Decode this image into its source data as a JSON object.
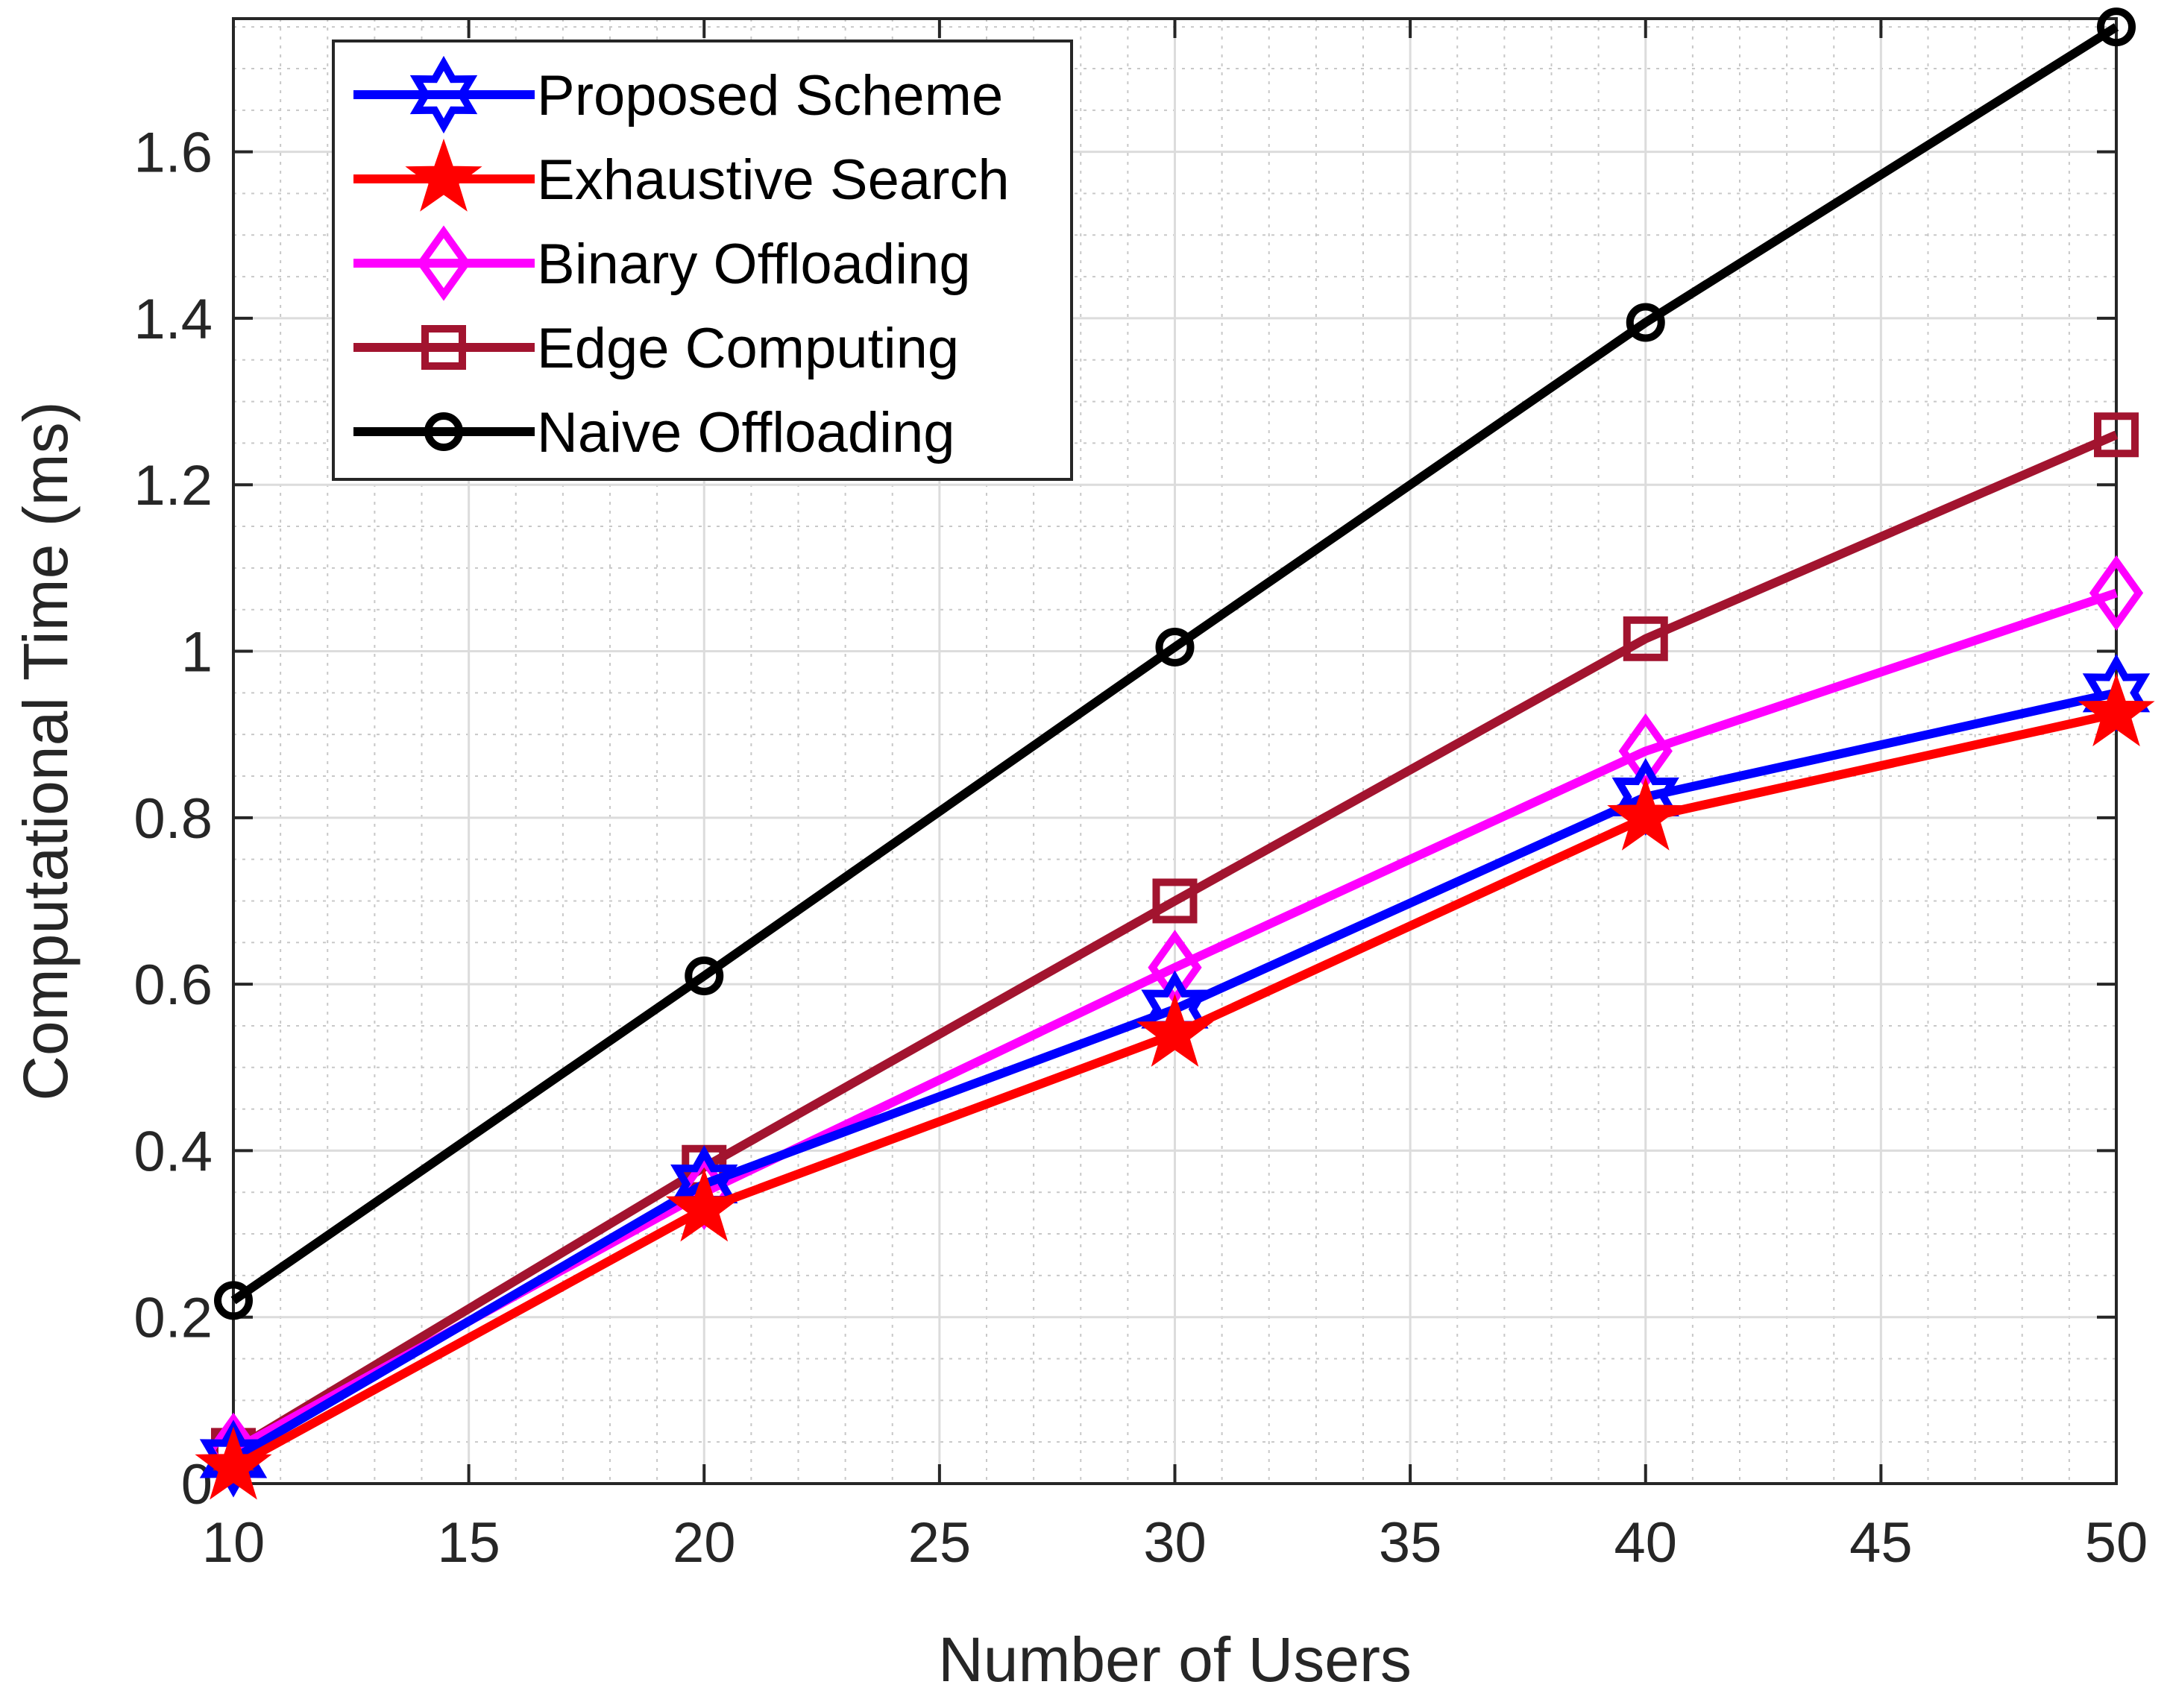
{
  "chart_data": {
    "type": "line",
    "title": "",
    "xlabel": "Number of Users",
    "ylabel": "Computational Time (ms)",
    "xlim": [
      10,
      50
    ],
    "ylim": [
      0,
      1.76
    ],
    "xticks": [
      10,
      15,
      20,
      25,
      30,
      35,
      40,
      45,
      50
    ],
    "yticks": [
      0,
      0.2,
      0.4,
      0.6,
      0.8,
      1,
      1.2,
      1.4,
      1.6
    ],
    "xtick_labels": [
      "10",
      "15",
      "20",
      "25",
      "30",
      "35",
      "40",
      "45",
      "50"
    ],
    "ytick_labels": [
      "0",
      "0.2",
      "0.4",
      "0.6",
      "0.8",
      "1",
      "1.2",
      "1.4",
      "1.6"
    ],
    "grid": true,
    "minor_grid": true,
    "legend_position": "top-left",
    "x": [
      10,
      20,
      30,
      40,
      50
    ],
    "series": [
      {
        "name": "Proposed Scheme",
        "color": "#0000ff",
        "marker": "hexagram",
        "values": [
          0.03,
          0.36,
          0.57,
          0.825,
          0.95
        ]
      },
      {
        "name": "Exhaustive Search",
        "color": "#ff0000",
        "marker": "pentagram",
        "values": [
          0.02,
          0.33,
          0.54,
          0.8,
          0.925
        ]
      },
      {
        "name": "Binary Offloading",
        "color": "#ff00ff",
        "marker": "diamond",
        "values": [
          0.04,
          0.35,
          0.62,
          0.88,
          1.07
        ]
      },
      {
        "name": "Edge Computing",
        "color": "#a2142f",
        "marker": "square",
        "values": [
          0.04,
          0.38,
          0.7,
          1.015,
          1.26
        ]
      },
      {
        "name": "Naive Offloading",
        "color": "#000000",
        "marker": "circle",
        "values": [
          0.22,
          0.61,
          1.005,
          1.395,
          1.75
        ]
      }
    ]
  }
}
